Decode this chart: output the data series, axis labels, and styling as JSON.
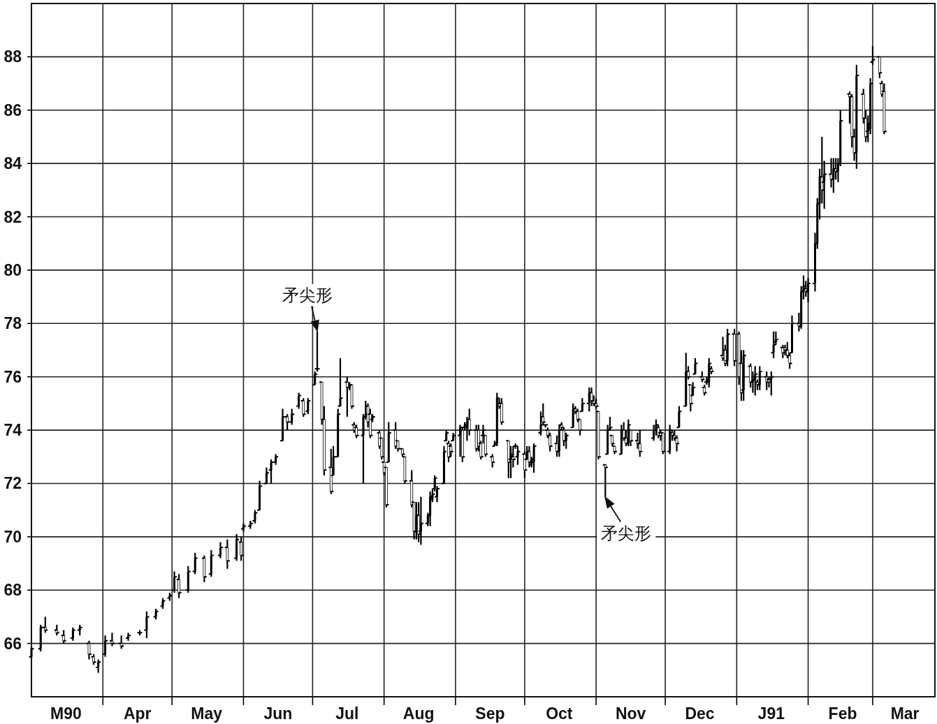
{
  "chart_data": {
    "type": "candlestick",
    "x": [
      "1990-03-01",
      "1990-03-05",
      "1990-03-07",
      "1990-03-12",
      "1990-03-15",
      "1990-03-19",
      "1990-03-22",
      "1990-03-26",
      "1990-03-28",
      "1990-03-30",
      "1990-04-02",
      "1990-04-05",
      "1990-04-09",
      "1990-04-12",
      "1990-04-17",
      "1990-04-20",
      "1990-04-24",
      "1990-04-27",
      "1990-04-30",
      "1990-05-02",
      "1990-05-04",
      "1990-05-08",
      "1990-05-11",
      "1990-05-15",
      "1990-05-18",
      "1990-05-22",
      "1990-05-25",
      "1990-05-29",
      "1990-05-31",
      "1990-06-01",
      "1990-06-04",
      "1990-06-06",
      "1990-06-08",
      "1990-06-11",
      "1990-06-13",
      "1990-06-15",
      "1990-06-18",
      "1990-06-20",
      "1990-06-22",
      "1990-06-25",
      "1990-06-27",
      "1990-06-29",
      "1990-07-02",
      "1990-07-03",
      "1990-07-05",
      "1990-07-06",
      "1990-07-09",
      "1990-07-10",
      "1990-07-12",
      "1990-07-13",
      "1990-07-16",
      "1990-07-17",
      "1990-07-18",
      "1990-07-19",
      "1990-07-20",
      "1990-07-23",
      "1990-07-24",
      "1990-07-25",
      "1990-07-26",
      "1990-07-27",
      "1990-07-30",
      "1990-07-31",
      "1990-08-01",
      "1990-08-02",
      "1990-08-03",
      "1990-08-06",
      "1990-08-07",
      "1990-08-09",
      "1990-08-10",
      "1990-08-13",
      "1990-08-14",
      "1990-08-15",
      "1990-08-16",
      "1990-08-17",
      "1990-08-20",
      "1990-08-21",
      "1990-08-22",
      "1990-08-23",
      "1990-08-24",
      "1990-08-27",
      "1990-08-28",
      "1990-08-29",
      "1990-08-30",
      "1990-08-31",
      "1990-09-03",
      "1990-09-04",
      "1990-09-05",
      "1990-09-06",
      "1990-09-07",
      "1990-09-10",
      "1990-09-11",
      "1990-09-12",
      "1990-09-13",
      "1990-09-14",
      "1990-09-17",
      "1990-09-18",
      "1990-09-19",
      "1990-09-20",
      "1990-09-21",
      "1990-09-24",
      "1990-09-25",
      "1990-09-26",
      "1990-09-27",
      "1990-09-28",
      "1990-10-01",
      "1990-10-02",
      "1990-10-03",
      "1990-10-04",
      "1990-10-05",
      "1990-10-08",
      "1990-10-09",
      "1990-10-10",
      "1990-10-11",
      "1990-10-12",
      "1990-10-15",
      "1990-10-16",
      "1990-10-17",
      "1990-10-18",
      "1990-10-19",
      "1990-10-22",
      "1990-10-23",
      "1990-10-24",
      "1990-10-25",
      "1990-10-26",
      "1990-10-29",
      "1990-10-30",
      "1990-10-31",
      "1990-11-01",
      "1990-11-02",
      "1990-11-05",
      "1990-11-06",
      "1990-11-07",
      "1990-11-08",
      "1990-11-09",
      "1990-11-12",
      "1990-11-13",
      "1990-11-14",
      "1990-11-15",
      "1990-11-16",
      "1990-11-19",
      "1990-11-20",
      "1990-11-26",
      "1990-11-27",
      "1990-11-28",
      "1990-11-29",
      "1990-11-30",
      "1990-12-03",
      "1990-12-04",
      "1990-12-05",
      "1990-12-06",
      "1990-12-07",
      "1990-12-10",
      "1990-12-11",
      "1990-12-12",
      "1990-12-13",
      "1990-12-14",
      "1990-12-17",
      "1990-12-18",
      "1990-12-19",
      "1990-12-20",
      "1990-12-21",
      "1990-12-26",
      "1990-12-27",
      "1990-12-28",
      "1990-12-31",
      "1991-01-02",
      "1991-01-03",
      "1991-01-04",
      "1991-01-07",
      "1991-01-08",
      "1991-01-09",
      "1991-01-10",
      "1991-01-11",
      "1991-01-14",
      "1991-01-15",
      "1991-01-16",
      "1991-01-17",
      "1991-01-18",
      "1991-01-21",
      "1991-01-22",
      "1991-01-23",
      "1991-01-24",
      "1991-01-25",
      "1991-01-28",
      "1991-01-29",
      "1991-01-30",
      "1991-01-31",
      "1991-02-01",
      "1991-02-04",
      "1991-02-05",
      "1991-02-06",
      "1991-02-07",
      "1991-02-08",
      "1991-02-11",
      "1991-02-12",
      "1991-02-13",
      "1991-02-14",
      "1991-02-15",
      "1991-02-19",
      "1991-02-20",
      "1991-02-21",
      "1991-02-22",
      "1991-02-25",
      "1991-02-26",
      "1991-02-27",
      "1991-02-28",
      "1991-03-01",
      "1991-03-04",
      "1991-03-05",
      "1991-03-06"
    ],
    "ohlc": [
      [
        65.5,
        65.9,
        65.4,
        65.8
      ],
      [
        65.8,
        66.7,
        65.7,
        66.6
      ],
      [
        66.6,
        67.0,
        66.4,
        66.5
      ],
      [
        66.5,
        66.7,
        66.3,
        66.4
      ],
      [
        66.3,
        66.5,
        66.0,
        66.1
      ],
      [
        66.2,
        66.6,
        66.1,
        66.5
      ],
      [
        66.5,
        66.7,
        66.3,
        66.6
      ],
      [
        66.0,
        66.1,
        65.4,
        65.6
      ],
      [
        65.5,
        65.6,
        65.2,
        65.3
      ],
      [
        65.1,
        65.4,
        64.9,
        65.3
      ],
      [
        65.6,
        66.3,
        65.5,
        66.1
      ],
      [
        66.1,
        66.4,
        65.9,
        66.0
      ],
      [
        66.0,
        66.3,
        65.8,
        65.9
      ],
      [
        66.2,
        66.4,
        66.1,
        66.3
      ],
      [
        66.4,
        66.5,
        66.3,
        66.4
      ],
      [
        66.5,
        67.2,
        66.2,
        67.0
      ],
      [
        67.0,
        67.3,
        66.9,
        67.2
      ],
      [
        67.4,
        67.7,
        67.3,
        67.6
      ],
      [
        67.7,
        67.9,
        67.6,
        67.8
      ],
      [
        68.0,
        68.7,
        67.9,
        68.5
      ],
      [
        68.4,
        68.6,
        67.7,
        67.9
      ],
      [
        68.0,
        68.9,
        67.9,
        68.7
      ],
      [
        68.7,
        69.4,
        68.6,
        69.2
      ],
      [
        69.2,
        69.3,
        68.3,
        68.5
      ],
      [
        68.6,
        69.5,
        68.5,
        69.3
      ],
      [
        69.3,
        69.8,
        69.2,
        69.6
      ],
      [
        69.6,
        69.9,
        68.8,
        69.1
      ],
      [
        69.2,
        70.1,
        69.1,
        69.9
      ],
      [
        69.8,
        70.0,
        69.1,
        69.3
      ],
      [
        70.3,
        70.5,
        70.2,
        70.4
      ],
      [
        70.4,
        70.6,
        70.3,
        70.5
      ],
      [
        70.6,
        71.0,
        70.5,
        70.9
      ],
      [
        71.0,
        72.1,
        71.0,
        71.9
      ],
      [
        72.0,
        72.6,
        72.0,
        72.4
      ],
      [
        72.5,
        72.9,
        72.0,
        72.8
      ],
      [
        72.8,
        73.1,
        72.7,
        73.0
      ],
      [
        73.6,
        74.8,
        73.6,
        74.5
      ],
      [
        74.5,
        74.6,
        74.0,
        74.3
      ],
      [
        74.3,
        74.8,
        74.2,
        74.6
      ],
      [
        74.9,
        75.4,
        74.8,
        75.3
      ],
      [
        75.1,
        75.2,
        74.5,
        74.6
      ],
      [
        74.7,
        75.2,
        74.6,
        75.1
      ],
      [
        75.7,
        76.2,
        75.7,
        76.1
      ],
      [
        76.3,
        77.7,
        76.2,
        76.3
      ],
      [
        75.8,
        75.8,
        74.2,
        74.4
      ],
      [
        74.4,
        74.9,
        72.3,
        72.5
      ],
      [
        72.6,
        73.3,
        71.6,
        71.7
      ],
      [
        72.3,
        73.4,
        72.3,
        73.0
      ],
      [
        73.0,
        74.8,
        73.0,
        74.6
      ],
      [
        74.9,
        76.7,
        74.9,
        75.2
      ],
      [
        75.8,
        76.0,
        74.5,
        75.6
      ],
      [
        75.6,
        75.8,
        75.5,
        75.7
      ],
      [
        75.7,
        75.7,
        74.8,
        74.9
      ],
      [
        74.2,
        74.3,
        73.9,
        74.0
      ],
      [
        74.1,
        74.2,
        73.7,
        73.8
      ],
      [
        73.8,
        74.6,
        72.0,
        74.5
      ],
      [
        74.5,
        75.1,
        74.4,
        74.6
      ],
      [
        74.9,
        75.0,
        74.1,
        74.3
      ],
      [
        74.6,
        74.8,
        73.7,
        73.8
      ],
      [
        74.4,
        74.6,
        74.3,
        74.5
      ],
      [
        73.9,
        74.0,
        73.3,
        73.4
      ],
      [
        73.7,
        73.7,
        72.9,
        73.0
      ],
      [
        72.8,
        72.8,
        72.3,
        72.4
      ],
      [
        72.6,
        72.6,
        71.1,
        71.2
      ],
      [
        72.8,
        74.3,
        72.8,
        73.9
      ],
      [
        74.0,
        74.3,
        73.3,
        73.4
      ],
      [
        73.6,
        73.6,
        73.2,
        73.3
      ],
      [
        73.3,
        73.3,
        73.0,
        73.1
      ],
      [
        73.0,
        73.0,
        72.0,
        72.1
      ],
      [
        72.1,
        72.5,
        71.1,
        71.2
      ],
      [
        71.3,
        71.3,
        69.9,
        70.2
      ],
      [
        70.2,
        71.3,
        69.9,
        70.8
      ],
      [
        70.8,
        71.3,
        69.8,
        70.1
      ],
      [
        70.2,
        71.5,
        69.7,
        70.5
      ],
      [
        70.5,
        70.9,
        70.4,
        70.8
      ],
      [
        70.8,
        71.7,
        70.4,
        71.5
      ],
      [
        71.4,
        71.8,
        71.3,
        71.6
      ],
      [
        71.8,
        72.3,
        71.7,
        72.2
      ],
      [
        71.5,
        71.9,
        71.3,
        71.8
      ],
      [
        72.0,
        73.4,
        72.0,
        73.2
      ],
      [
        73.6,
        74.0,
        73.6,
        73.9
      ],
      [
        73.5,
        73.6,
        72.8,
        73.0
      ],
      [
        73.4,
        73.5,
        73.0,
        73.2
      ],
      [
        73.6,
        73.9,
        73.6,
        73.8
      ],
      [
        73.8,
        74.2,
        73.0,
        74.1
      ],
      [
        74.0,
        74.1,
        72.8,
        73.0
      ],
      [
        74.1,
        74.3,
        74.0,
        74.2
      ],
      [
        74.1,
        74.5,
        73.6,
        74.3
      ],
      [
        74.4,
        74.8,
        73.8,
        74.0
      ],
      [
        74.0,
        74.2,
        73.2,
        73.3
      ],
      [
        74.0,
        74.2,
        73.2,
        73.4
      ],
      [
        73.5,
        73.6,
        72.9,
        73.0
      ],
      [
        73.8,
        74.2,
        73.5,
        74.0
      ],
      [
        73.8,
        73.8,
        73.0,
        73.1
      ],
      [
        73.0,
        73.1,
        72.6,
        72.8
      ],
      [
        73.4,
        73.6,
        73.4,
        73.5
      ],
      [
        73.5,
        75.4,
        73.4,
        75.2
      ],
      [
        75.0,
        75.2,
        74.8,
        74.9
      ],
      [
        75.0,
        75.2,
        74.2,
        74.3
      ],
      [
        73.6,
        73.6,
        72.2,
        72.8
      ],
      [
        72.9,
        73.4,
        72.2,
        73.1
      ],
      [
        73.0,
        73.4,
        72.6,
        72.9
      ],
      [
        73.4,
        73.5,
        73.3,
        73.4
      ],
      [
        73.0,
        73.4,
        72.7,
        73.2
      ],
      [
        73.1,
        73.2,
        72.2,
        72.5
      ],
      [
        72.9,
        73.4,
        72.9,
        73.2
      ],
      [
        73.2,
        73.4,
        72.6,
        72.8
      ],
      [
        72.7,
        73.0,
        72.6,
        72.9
      ],
      [
        72.8,
        73.5,
        72.4,
        73.4
      ],
      [
        73.9,
        74.7,
        73.8,
        74.2
      ],
      [
        74.5,
        75.0,
        74.2,
        74.3
      ],
      [
        74.2,
        74.2,
        74.1,
        74.2
      ],
      [
        74.0,
        74.1,
        73.7,
        73.8
      ],
      [
        73.8,
        73.9,
        73.2,
        73.4
      ],
      [
        73.5,
        73.8,
        73.0,
        73.2
      ],
      [
        73.2,
        74.2,
        73.0,
        74.0
      ],
      [
        74.2,
        74.3,
        74.0,
        74.1
      ],
      [
        74.0,
        74.1,
        73.4,
        73.6
      ],
      [
        73.6,
        73.9,
        73.3,
        73.8
      ],
      [
        74.1,
        75.0,
        74.1,
        74.8
      ],
      [
        74.8,
        74.9,
        74.6,
        74.7
      ],
      [
        74.7,
        74.8,
        74.3,
        74.4
      ],
      [
        74.4,
        74.4,
        73.8,
        74.0
      ],
      [
        74.7,
        75.2,
        74.7,
        75.0
      ],
      [
        75.0,
        75.6,
        74.7,
        75.4
      ],
      [
        75.4,
        75.6,
        74.9,
        75.1
      ],
      [
        75.1,
        75.3,
        74.9,
        75.0
      ],
      [
        75.0,
        75.2,
        74.8,
        74.9
      ],
      [
        74.7,
        74.7,
        72.9,
        73.0
      ],
      [
        72.7,
        72.7,
        71.5,
        72.6
      ],
      [
        73.1,
        74.2,
        73.1,
        74.0
      ],
      [
        74.0,
        74.5,
        74.0,
        74.1
      ],
      [
        73.8,
        73.8,
        73.4,
        73.5
      ],
      [
        73.4,
        73.4,
        73.1,
        73.2
      ],
      [
        73.1,
        74.2,
        73.1,
        74.0
      ],
      [
        74.0,
        74.3,
        73.6,
        73.7
      ],
      [
        73.7,
        74.0,
        73.4,
        73.5
      ],
      [
        73.5,
        74.4,
        73.4,
        74.2
      ],
      [
        74.0,
        74.0,
        73.4,
        73.6
      ],
      [
        73.6,
        73.9,
        73.3,
        73.5
      ],
      [
        73.5,
        74.0,
        73.0,
        73.2
      ],
      [
        73.7,
        74.2,
        73.6,
        74.0
      ],
      [
        74.0,
        74.4,
        73.8,
        74.2
      ],
      [
        74.1,
        74.2,
        73.7,
        73.8
      ],
      [
        73.9,
        74.0,
        73.6,
        73.8
      ],
      [
        73.9,
        73.9,
        73.1,
        73.2
      ],
      [
        73.2,
        74.2,
        73.1,
        74.0
      ],
      [
        73.9,
        74.0,
        73.6,
        73.8
      ],
      [
        73.8,
        74.0,
        73.6,
        73.7
      ],
      [
        73.7,
        73.8,
        73.2,
        73.5
      ],
      [
        74.1,
        74.9,
        74.1,
        74.7
      ],
      [
        74.9,
        76.9,
        74.9,
        76.2
      ],
      [
        76.2,
        76.4,
        75.9,
        76.0
      ],
      [
        75.7,
        75.7,
        74.7,
        75.0
      ],
      [
        75.3,
        75.8,
        75.3,
        75.6
      ],
      [
        76.1,
        76.7,
        76.1,
        76.5
      ],
      [
        76.0,
        76.2,
        75.8,
        75.9
      ],
      [
        75.6,
        75.7,
        75.3,
        75.4
      ],
      [
        75.8,
        76.0,
        75.7,
        75.9
      ],
      [
        75.8,
        76.7,
        75.6,
        76.5
      ],
      [
        76.3,
        76.4,
        76.1,
        76.2
      ],
      [
        76.8,
        77.5,
        76.6,
        76.7
      ],
      [
        77.0,
        77.2,
        76.4,
        76.5
      ],
      [
        76.6,
        77.8,
        76.4,
        77.6
      ],
      [
        77.6,
        77.8,
        76.4,
        76.6
      ],
      [
        77.6,
        77.7,
        75.7,
        76.0
      ],
      [
        76.5,
        77.0,
        75.1,
        75.4
      ],
      [
        75.5,
        77.0,
        75.1,
        76.8
      ],
      [
        76.4,
        76.5,
        75.6,
        75.8
      ],
      [
        75.8,
        76.2,
        75.4,
        75.9
      ],
      [
        75.9,
        76.4,
        75.3,
        76.1
      ],
      [
        75.8,
        75.9,
        75.5,
        75.7
      ],
      [
        75.7,
        76.4,
        75.5,
        76.2
      ],
      [
        76.0,
        76.2,
        75.5,
        75.8
      ],
      [
        75.9,
        76.0,
        75.6,
        75.8
      ],
      [
        75.9,
        76.2,
        75.3,
        76.0
      ],
      [
        76.9,
        77.7,
        76.7,
        77.2
      ],
      [
        77.3,
        77.7,
        77.2,
        77.4
      ],
      [
        77.1,
        77.2,
        76.7,
        76.9
      ],
      [
        77.1,
        77.2,
        76.8,
        77.0
      ],
      [
        77.0,
        77.3,
        76.7,
        76.8
      ],
      [
        76.8,
        76.9,
        76.3,
        76.5
      ],
      [
        76.9,
        78.3,
        76.9,
        78.0
      ],
      [
        78.0,
        78.4,
        77.7,
        77.9
      ],
      [
        77.9,
        79.4,
        77.8,
        79.2
      ],
      [
        79.2,
        79.8,
        78.9,
        79.4
      ],
      [
        79.3,
        79.6,
        79.0,
        79.2
      ],
      [
        79.2,
        79.7,
        78.8,
        79.5
      ],
      [
        79.5,
        81.4,
        79.2,
        81.0
      ],
      [
        81.0,
        82.7,
        80.8,
        82.5
      ],
      [
        82.5,
        83.8,
        81.9,
        83.5
      ],
      [
        83.5,
        85.0,
        82.5,
        83.0
      ],
      [
        83.3,
        84.1,
        82.3,
        83.6
      ],
      [
        83.6,
        84.2,
        83.1,
        83.4
      ],
      [
        83.4,
        84.2,
        82.9,
        83.8
      ],
      [
        83.8,
        84.2,
        83.4,
        83.7
      ],
      [
        83.7,
        84.2,
        83.3,
        84.0
      ],
      [
        84.0,
        86.0,
        83.9,
        85.6
      ],
      [
        86.6,
        86.7,
        85.5,
        86.5
      ],
      [
        86.5,
        86.6,
        84.6,
        85.0
      ],
      [
        85.0,
        85.3,
        84.1,
        84.4
      ],
      [
        84.4,
        87.7,
        83.8,
        87.3
      ],
      [
        86.6,
        86.8,
        85.5,
        85.7
      ],
      [
        85.7,
        86.0,
        84.8,
        85.0
      ],
      [
        85.2,
        85.8,
        84.8,
        85.5
      ],
      [
        85.3,
        87.2,
        85.1,
        87.0
      ],
      [
        87.8,
        88.4,
        87.7,
        87.9
      ],
      [
        88.0,
        88.0,
        87.2,
        87.4
      ],
      [
        87.0,
        87.1,
        86.5,
        86.6
      ],
      [
        86.7,
        87.0,
        85.1,
        85.2
      ]
    ],
    "color": "#000000",
    "xlim": [
      "1990-03-01",
      "1991-03-28"
    ],
    "xticks": [
      {
        "value": "1990-03-16",
        "label": "M90"
      },
      {
        "value": "1990-04-01",
        "label": null
      },
      {
        "value": "1990-04-16",
        "label": "Apr"
      },
      {
        "value": "1990-05-01",
        "label": null
      },
      {
        "value": "1990-05-16",
        "label": "May"
      },
      {
        "value": "1990-06-01",
        "label": null
      },
      {
        "value": "1990-06-16",
        "label": "Jun"
      },
      {
        "value": "1990-07-01",
        "label": null
      },
      {
        "value": "1990-07-16",
        "label": "Jul"
      },
      {
        "value": "1990-08-01",
        "label": null
      },
      {
        "value": "1990-08-16",
        "label": "Aug"
      },
      {
        "value": "1990-09-01",
        "label": null
      },
      {
        "value": "1990-09-16",
        "label": "Sep"
      },
      {
        "value": "1990-10-01",
        "label": null
      },
      {
        "value": "1990-10-16",
        "label": "Oct"
      },
      {
        "value": "1990-11-01",
        "label": null
      },
      {
        "value": "1990-11-16",
        "label": "Nov"
      },
      {
        "value": "1990-12-01",
        "label": null
      },
      {
        "value": "1990-12-16",
        "label": "Dec"
      },
      {
        "value": "1991-01-01",
        "label": null
      },
      {
        "value": "1991-01-16",
        "label": "J91"
      },
      {
        "value": "1991-02-01",
        "label": null
      },
      {
        "value": "1991-02-16",
        "label": "Feb"
      },
      {
        "value": "1991-03-01",
        "label": null
      },
      {
        "value": "1991-03-15",
        "label": "Mar"
      }
    ],
    "ylim": [
      64,
      90
    ],
    "yticks": [
      66,
      68,
      70,
      72,
      74,
      76,
      78,
      80,
      82,
      84,
      86,
      88
    ],
    "grid": true,
    "annotations": [
      {
        "text": "矛尖形",
        "x": "1990-07-03",
        "y": 77.7
      },
      {
        "text": "矛尖形",
        "x": "1990-11-05",
        "y": 71.5
      }
    ]
  }
}
